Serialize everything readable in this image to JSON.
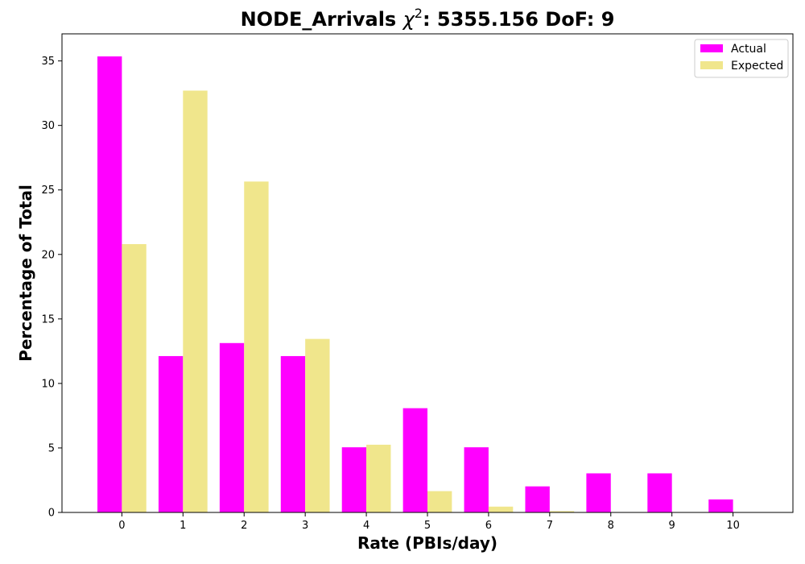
{
  "chart_data": {
    "type": "bar",
    "title_prefix": "NODE_Arrivals ",
    "title_symbol": "χ",
    "title_superscript": "2",
    "title_suffix": ": 5355.156 DoF: 9",
    "xlabel": "Rate (PBIs/day)",
    "ylabel": "Percentage of Total",
    "categories": [
      "0",
      "1",
      "2",
      "3",
      "4",
      "5",
      "6",
      "7",
      "8",
      "9",
      "10"
    ],
    "x_range": [
      -0.98,
      10.98
    ],
    "ylim": [
      0,
      37.1
    ],
    "y_ticks": [
      0,
      5,
      10,
      15,
      20,
      25,
      30,
      35
    ],
    "grid": false,
    "legend_placement": "top-right",
    "series": [
      {
        "name": "Actual",
        "color": "#ff00ff",
        "values": [
          35.35,
          12.12,
          13.13,
          12.12,
          5.05,
          8.08,
          5.05,
          2.02,
          3.03,
          3.03,
          1.01
        ]
      },
      {
        "name": "Expected",
        "color": "#f0e68c",
        "values": [
          20.8,
          32.7,
          25.65,
          13.45,
          5.25,
          1.65,
          0.45,
          0.1,
          0.02,
          0.0,
          0.0
        ]
      }
    ]
  }
}
